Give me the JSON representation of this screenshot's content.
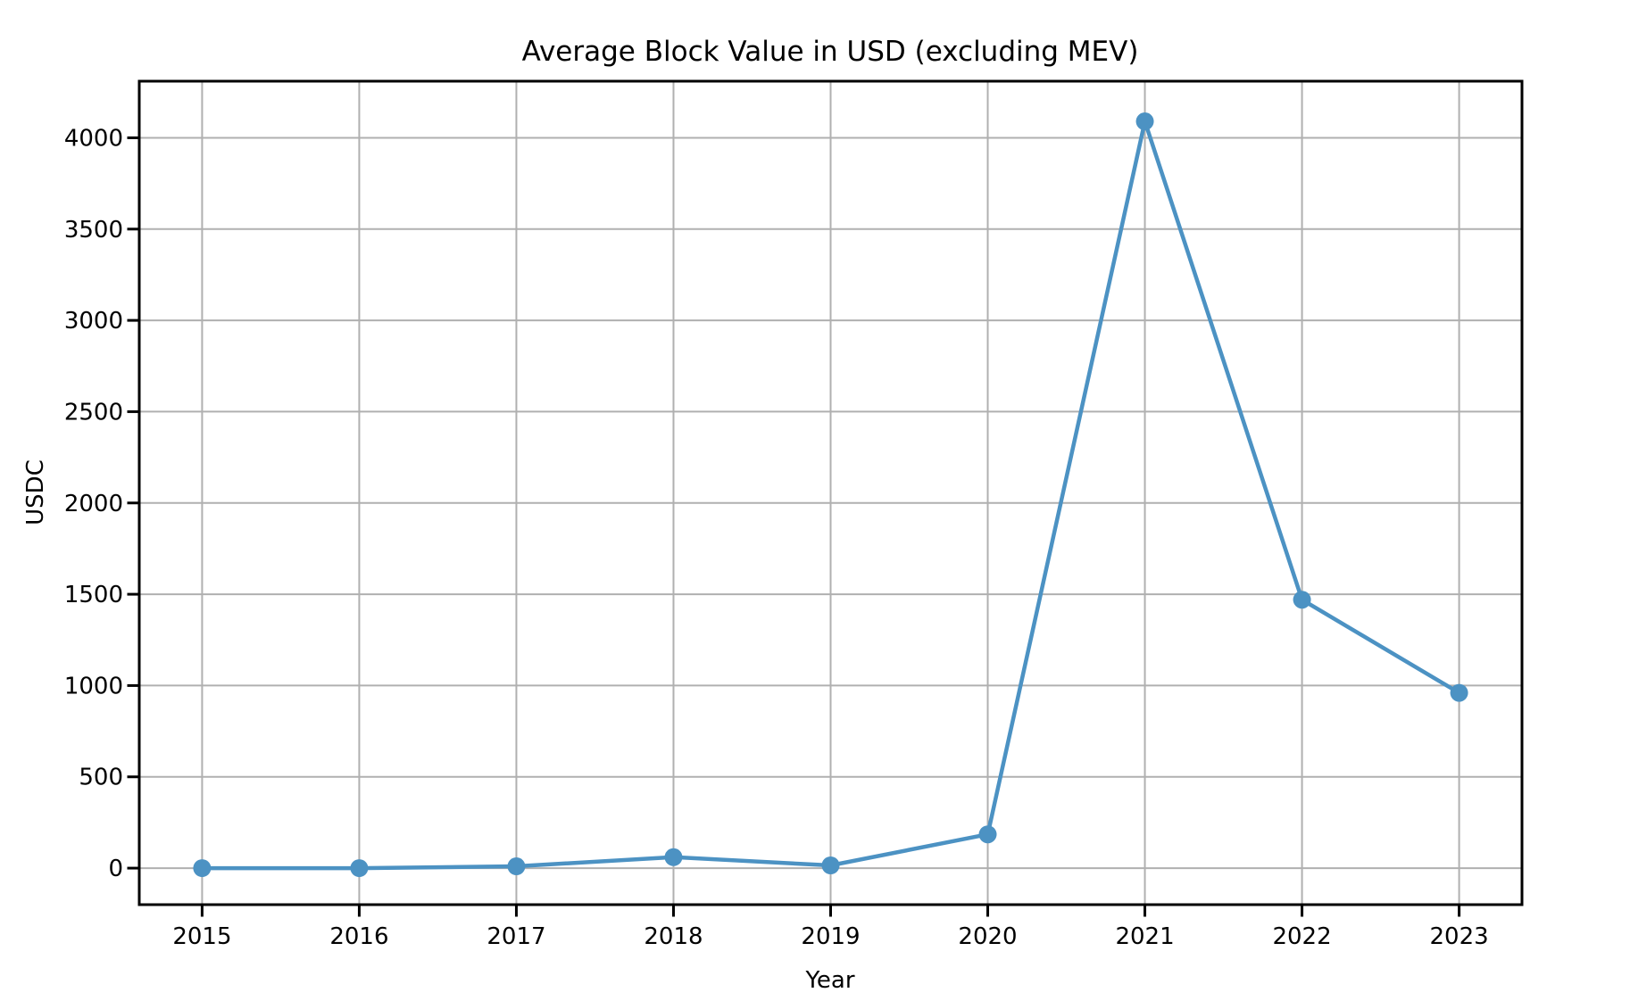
{
  "chart_data": {
    "type": "line",
    "title": "Average Block Value in USD (excluding MEV)",
    "xlabel": "Year",
    "ylabel": "USDC",
    "categories": [
      2015,
      2016,
      2017,
      2018,
      2019,
      2020,
      2021,
      2022,
      2023
    ],
    "values": [
      0,
      0,
      10,
      60,
      15,
      185,
      4090,
      1470,
      960
    ],
    "yticks": [
      0,
      500,
      1000,
      1500,
      2000,
      2500,
      3000,
      3500,
      4000
    ],
    "xlim": [
      2014.6,
      2023.4
    ],
    "ylim": [
      -200,
      4310
    ],
    "grid": true,
    "legend": false,
    "line_color": "#4C92C3",
    "marker": "circle",
    "marker_radius": 10,
    "line_width": 4.5,
    "grid_color": "#b0b0b0",
    "spine_color": "#000000",
    "background_color": "#ffffff"
  }
}
